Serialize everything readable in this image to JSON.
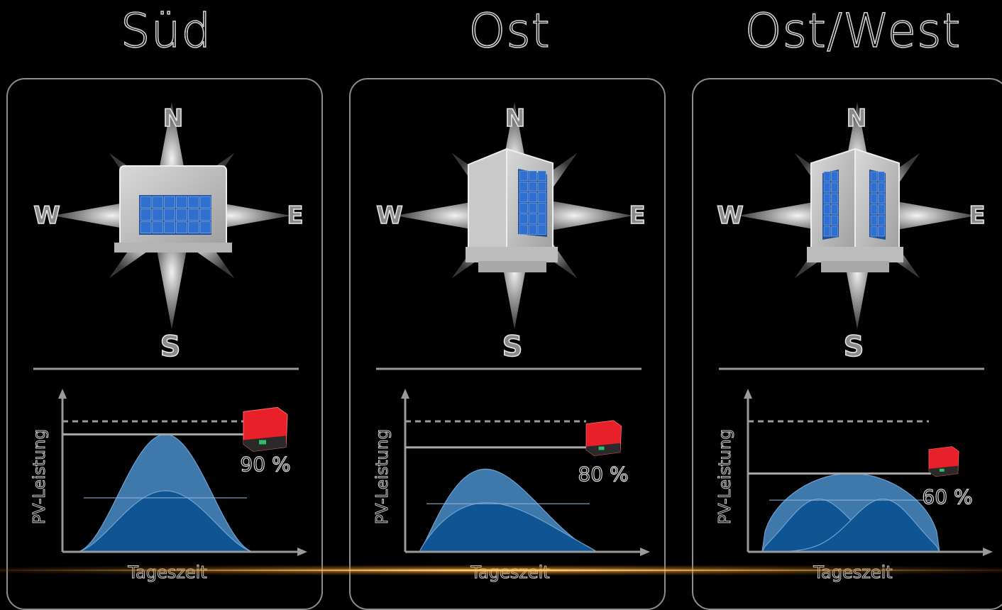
{
  "panels": [
    {
      "title": "Süd",
      "compass": {
        "north": "N",
        "west": "W",
        "east": "E",
        "south": "S"
      },
      "orientation": "south",
      "chart": {
        "ylabel": "PV-Leistung",
        "xlabel": "Tageszeit",
        "inverter_label": "90 %",
        "inverter_share": 0.9
      }
    },
    {
      "title": "Ost",
      "compass": {
        "north": "N",
        "west": "W",
        "east": "E",
        "south": "S"
      },
      "orientation": "east",
      "chart": {
        "ylabel": "PV-Leistung",
        "xlabel": "Tageszeit",
        "inverter_label": "80 %",
        "inverter_share": 0.8
      }
    },
    {
      "title": "Ost/West",
      "compass": {
        "north": "N",
        "west": "W",
        "east": "E",
        "south": "S"
      },
      "orientation": "east-west",
      "chart": {
        "ylabel": "PV-Leistung",
        "xlabel": "Tageszeit",
        "inverter_label": "60 %",
        "inverter_share": 0.6
      }
    }
  ],
  "colors": {
    "curve_light": "#3f79ac",
    "curve_dark": "#0f5593",
    "inverter": "#e8202a",
    "panel_blue": "#2f6fd0",
    "accent_glow": "#f0b24a"
  }
}
